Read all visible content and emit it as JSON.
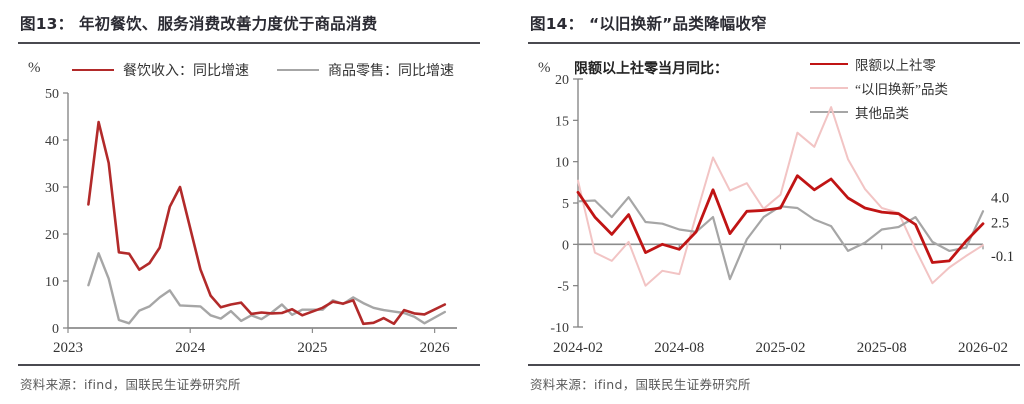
{
  "page": {
    "background": "#ffffff"
  },
  "source_line": "资料来源：ifind，国联民生证券研究所",
  "chart_data": [
    {
      "id": "fig13",
      "type": "line",
      "title": "图13： 年初餐饮、服务消费改善力度优于商品消费",
      "y_unit": "%",
      "ylim": [
        0,
        50
      ],
      "y_ticks": [
        50,
        40,
        30,
        20,
        10,
        0
      ],
      "x_tick_labels": [
        "2023",
        "2024",
        "2025",
        "2026"
      ],
      "x_tick_months": [
        "2023-01",
        "2024-01",
        "2025-01",
        "2026-01"
      ],
      "x_axis_span": [
        "2023-01",
        "2026-03"
      ],
      "grid": false,
      "legend_position": "top",
      "x": [
        "2023-03",
        "2023-04",
        "2023-05",
        "2023-06",
        "2023-07",
        "2023-08",
        "2023-09",
        "2023-10",
        "2023-11",
        "2023-12",
        "2024-02",
        "2024-03",
        "2024-04",
        "2024-05",
        "2024-06",
        "2024-07",
        "2024-08",
        "2024-09",
        "2024-10",
        "2024-11",
        "2024-12",
        "2025-02",
        "2025-03",
        "2025-04",
        "2025-05",
        "2025-06",
        "2025-07",
        "2025-08",
        "2025-09",
        "2025-10",
        "2025-11",
        "2025-12",
        "2026-02"
      ],
      "series": [
        {
          "name": "餐饮收入：同比增速",
          "color": "#B22A2A",
          "width": 2.6,
          "values": [
            26.3,
            43.8,
            35.1,
            16.1,
            15.8,
            12.4,
            13.8,
            17.1,
            25.8,
            30.0,
            12.5,
            6.9,
            4.4,
            5.0,
            5.4,
            3.0,
            3.3,
            3.1,
            3.2,
            4.0,
            2.7,
            4.3,
            5.6,
            5.2,
            5.9,
            0.9,
            1.1,
            2.1,
            0.9,
            3.8,
            3.1,
            2.9,
            5.0
          ]
        },
        {
          "name": "商品零售：同比增速",
          "color": "#A6A6A6",
          "width": 2.4,
          "values": [
            9.1,
            15.9,
            10.5,
            1.7,
            1.0,
            3.7,
            4.6,
            6.5,
            8.0,
            4.8,
            4.6,
            2.7,
            2.0,
            3.6,
            1.5,
            2.7,
            1.9,
            3.3,
            5.0,
            2.8,
            3.9,
            3.9,
            5.9,
            5.1,
            6.5,
            5.3,
            4.3,
            3.8,
            3.5,
            3.2,
            2.4,
            1.0,
            3.4
          ]
        }
      ],
      "source": "资料来源：ifind，国联民生证券研究所"
    },
    {
      "id": "fig14",
      "type": "line",
      "title": "图14： “以旧换新”品类降幅收窄",
      "subtitle": "限额以上社零当月同比：",
      "y_unit": "%",
      "ylim": [
        -10,
        20
      ],
      "y_ticks": [
        20,
        15,
        10,
        5,
        0,
        -5,
        -10
      ],
      "x_tick_labels": [
        "2024-02",
        "2024-08",
        "2025-02",
        "2025-08",
        "2026-02"
      ],
      "x_axis_span": [
        "2024-02",
        "2026-02"
      ],
      "grid": false,
      "legend_position": "top-right",
      "x": [
        "2024-02",
        "2024-03",
        "2024-04",
        "2024-05",
        "2024-06",
        "2024-07",
        "2024-08",
        "2024-09",
        "2024-10",
        "2024-11",
        "2024-12",
        "2025-01",
        "2025-02",
        "2025-03",
        "2025-04",
        "2025-05",
        "2025-06",
        "2025-07",
        "2025-08",
        "2025-09",
        "2025-10",
        "2025-11",
        "2025-12",
        "2026-01",
        "2026-02"
      ],
      "series": [
        {
          "name": "限额以上社零",
          "color": "#C01414",
          "width": 2.8,
          "values": [
            6.3,
            3.3,
            1.2,
            3.6,
            -1.0,
            0.0,
            -0.6,
            1.5,
            6.6,
            1.3,
            4.0,
            4.1,
            4.4,
            8.3,
            6.6,
            7.9,
            5.6,
            4.4,
            3.9,
            3.7,
            2.4,
            -2.2,
            -2.0,
            0.4,
            2.5
          ]
        },
        {
          "name": "“以旧换新”品类",
          "color": "#F2C4C4",
          "width": 2.0,
          "values": [
            7.7,
            -1.0,
            -2.0,
            0.3,
            -5.0,
            -3.2,
            -3.6,
            3.5,
            10.5,
            6.5,
            7.4,
            4.3,
            6.0,
            13.5,
            11.8,
            16.6,
            10.3,
            6.7,
            4.4,
            3.8,
            -0.6,
            -4.7,
            -2.8,
            -1.4,
            -0.1
          ]
        },
        {
          "name": "其他品类",
          "color": "#A6A6A6",
          "width": 2.2,
          "values": [
            5.2,
            5.3,
            3.3,
            5.7,
            2.7,
            2.5,
            1.8,
            1.5,
            3.3,
            -4.2,
            0.6,
            3.3,
            4.6,
            4.4,
            3.0,
            2.2,
            -0.8,
            0.2,
            1.8,
            2.1,
            3.3,
            0.3,
            -0.8,
            -0.4,
            4.0
          ]
        }
      ],
      "end_labels": [
        {
          "text": "4.0",
          "value": 4.0
        },
        {
          "text": "2.5",
          "value": 2.5
        },
        {
          "text": "-0.1",
          "value": -0.1
        }
      ],
      "source": "资料来源：ifind，国联民生证券研究所"
    }
  ]
}
